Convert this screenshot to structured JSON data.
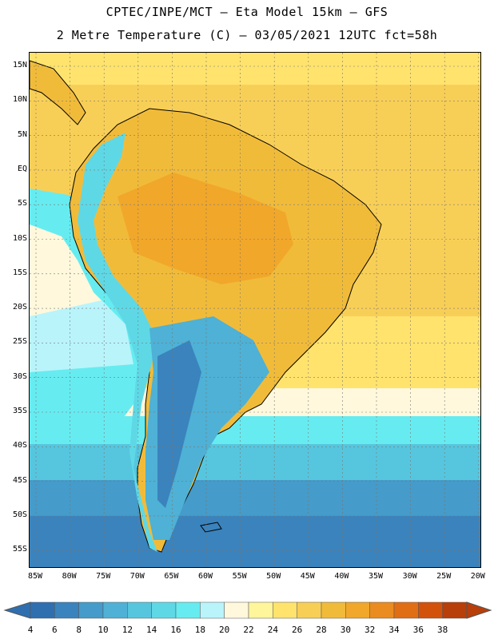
{
  "header": {
    "line1": "CPTEC/INPE/MCT –  Eta Model 15km – GFS",
    "line2": "2 Metre Temperature (C) – 03/05/2021 12UTC fct=58h"
  },
  "axes": {
    "lat_labels": [
      "15N",
      "10N",
      "5N",
      "EQ",
      "5S",
      "10S",
      "15S",
      "20S",
      "25S",
      "30S",
      "35S",
      "40S",
      "45S",
      "50S",
      "55S"
    ],
    "lon_labels": [
      "85W",
      "80W",
      "75W",
      "70W",
      "65W",
      "60W",
      "55W",
      "50W",
      "45W",
      "40W",
      "35W",
      "30W",
      "25W",
      "20W"
    ]
  },
  "colorbar": {
    "ticks": [
      "4",
      "6",
      "8",
      "10",
      "12",
      "14",
      "16",
      "18",
      "20",
      "22",
      "24",
      "26",
      "28",
      "30",
      "32",
      "34",
      "36",
      "38"
    ],
    "colors": [
      "#2f6fb0",
      "#3a83bd",
      "#459bc9",
      "#4eb1d5",
      "#56c6de",
      "#5fd8e6",
      "#66ecf0",
      "#b9f4fb",
      "#fff8dc",
      "#fff59a",
      "#ffe36d",
      "#f8cf56",
      "#f1bb3a",
      "#f1a72a",
      "#ea8c1f",
      "#e06e14",
      "#d2520c",
      "#b83e0a"
    ]
  },
  "chart_data": {
    "type": "heatmap",
    "title": "2 Metre Temperature (C)",
    "variable": "2 Metre Temperature",
    "units": "C",
    "model": "Eta Model 15km – GFS",
    "init_time": "03/05/2021 12UTC",
    "forecast_hour": "58h",
    "lat_range": [
      -58,
      17
    ],
    "lon_range": [
      -86,
      -20
    ],
    "scale_range": [
      4,
      38
    ]
  }
}
